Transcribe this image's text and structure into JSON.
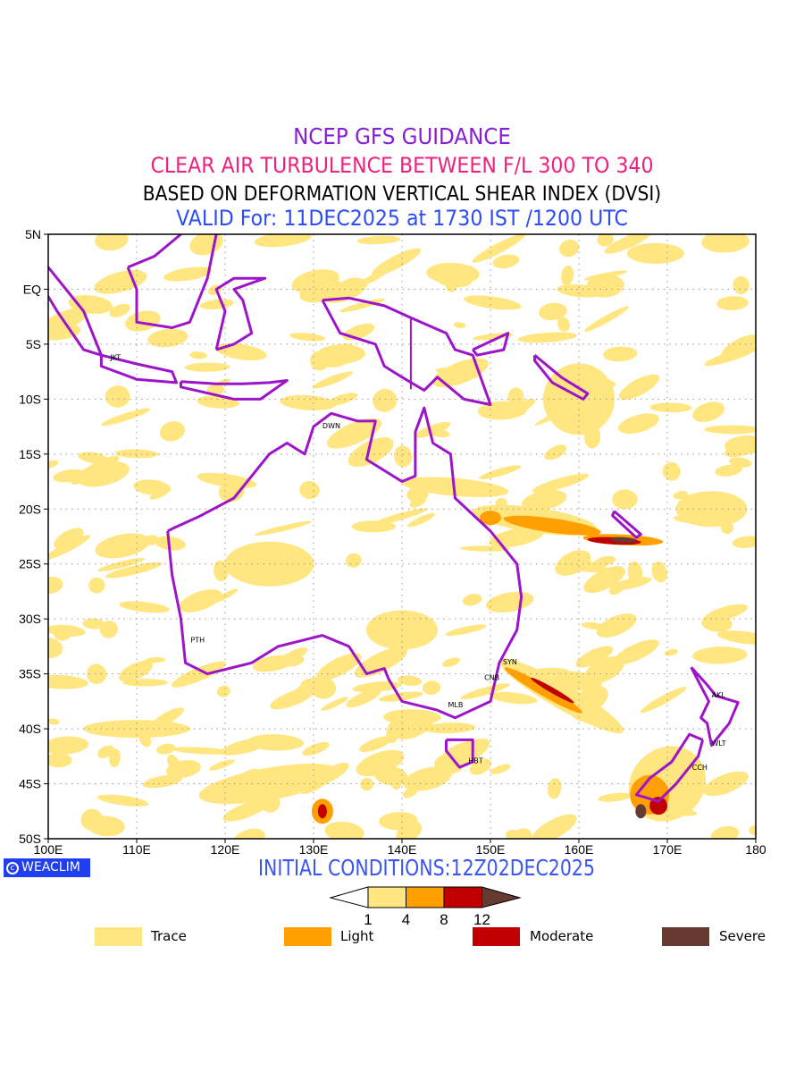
{
  "titles": {
    "line1": "NCEP GFS GUIDANCE",
    "line2": "CLEAR AIR TURBULENCE BETWEEN F/L 300 TO 340",
    "line3": "BASED ON DEFORMATION VERTICAL SHEAR INDEX (DVSI)",
    "line4": "VALID For: 11DEC2025 at 1730 IST /1200 UTC"
  },
  "map": {
    "lon_range": [
      100,
      180
    ],
    "lat_range": [
      -50,
      5
    ],
    "lon_ticks": [
      "100E",
      "110E",
      "120E",
      "130E",
      "140E",
      "150E",
      "160E",
      "170E",
      "180"
    ],
    "lat_ticks": [
      "5N",
      "EQ",
      "5S",
      "10S",
      "15S",
      "20S",
      "25S",
      "30S",
      "35S",
      "40S",
      "45S",
      "50S"
    ],
    "cities": [
      {
        "name": "JKT",
        "lon": 106.8,
        "lat": -6.2
      },
      {
        "name": "DWN",
        "lon": 130.8,
        "lat": -12.4
      },
      {
        "name": "PTH",
        "lon": 115.9,
        "lat": -31.9
      },
      {
        "name": "SYN",
        "lon": 151.2,
        "lat": -33.9
      },
      {
        "name": "CNB",
        "lon": 149.1,
        "lat": -35.3
      },
      {
        "name": "MLB",
        "lon": 145.0,
        "lat": -37.8
      },
      {
        "name": "HBT",
        "lon": 147.3,
        "lat": -42.9
      },
      {
        "name": "AKL",
        "lon": 174.8,
        "lat": -36.9
      },
      {
        "name": "WLT",
        "lon": 174.8,
        "lat": -41.3
      },
      {
        "name": "CCH",
        "lon": 172.6,
        "lat": -43.5
      }
    ]
  },
  "logo": "WEACLIM",
  "initial_conditions": "INITIAL CONDITIONS:12Z02DEC2025",
  "colorbar": {
    "ticks": [
      "1",
      "4",
      "8",
      "12"
    ],
    "colors": [
      "#ffe680",
      "#ffa000",
      "#c00000",
      "#663a30"
    ]
  },
  "legend": [
    {
      "label": "Trace",
      "color": "#ffe680"
    },
    {
      "label": "Light",
      "color": "#ffa000"
    },
    {
      "label": "Moderate",
      "color": "#c00000"
    },
    {
      "label": "Severe",
      "color": "#663a30"
    }
  ]
}
